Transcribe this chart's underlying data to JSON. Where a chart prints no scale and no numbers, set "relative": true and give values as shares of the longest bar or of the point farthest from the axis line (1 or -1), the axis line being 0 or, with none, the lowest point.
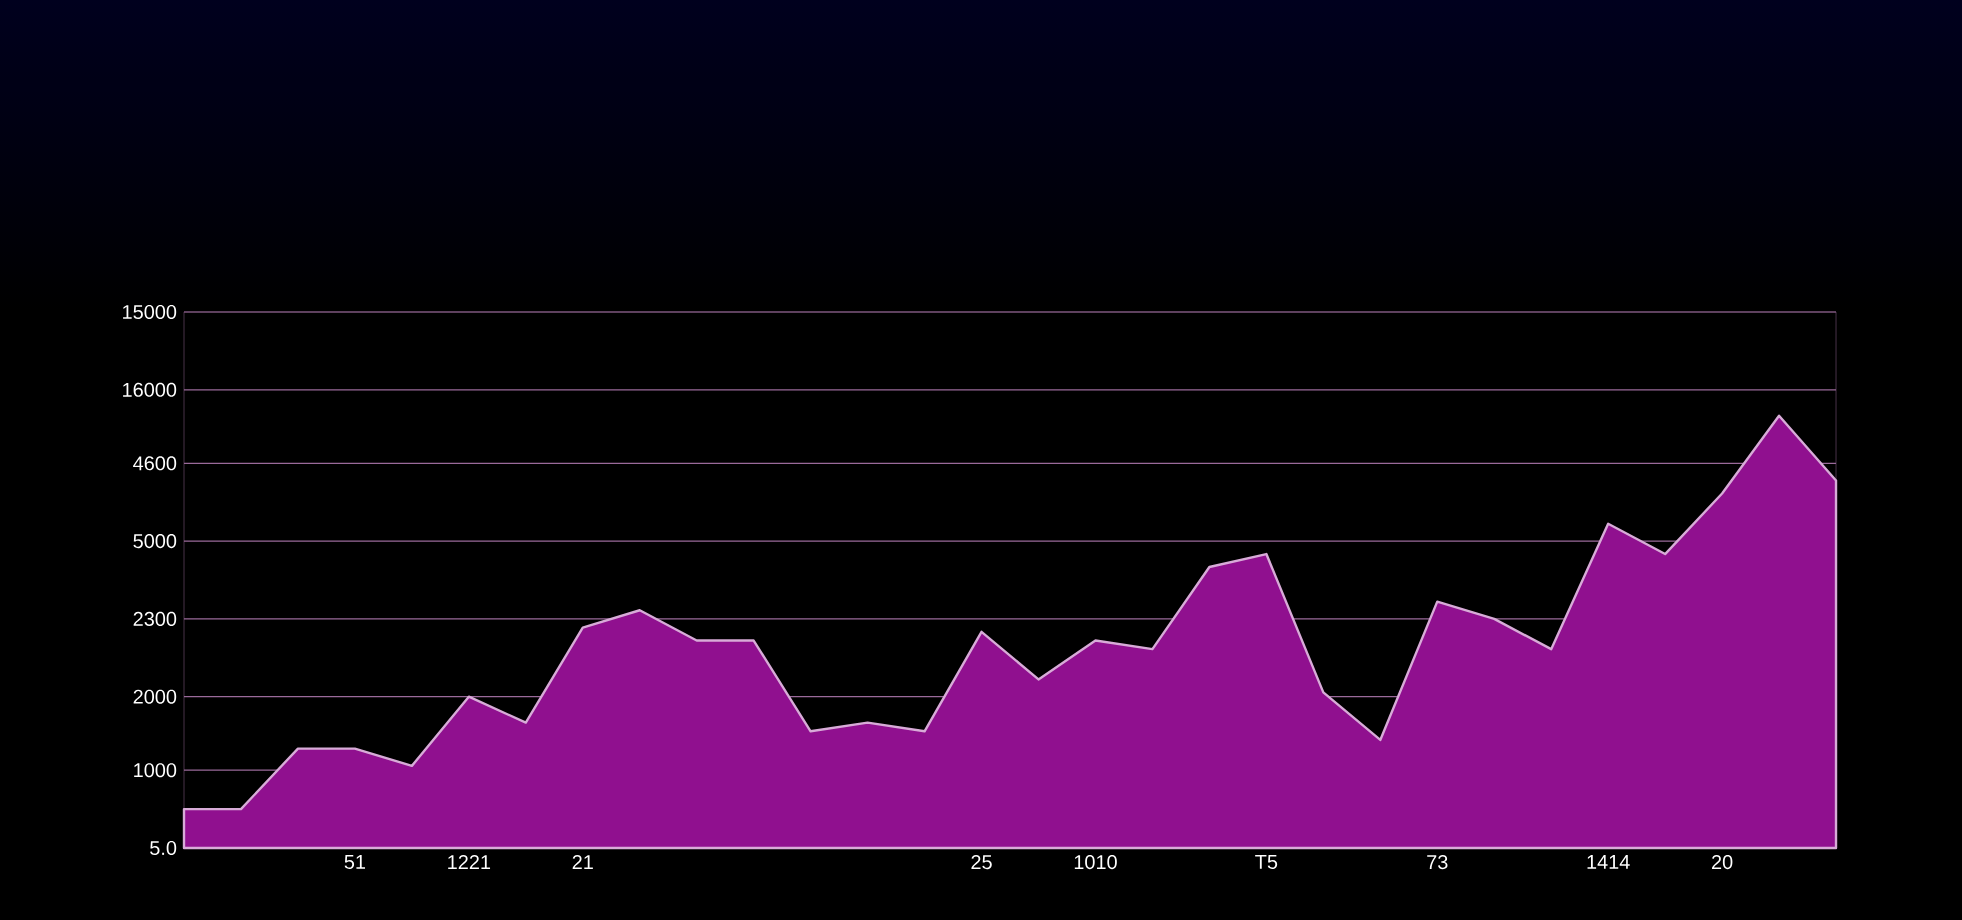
{
  "chart_data": {
    "type": "area",
    "categories": [
      null,
      null,
      null,
      "51",
      null,
      "1221",
      null,
      "21",
      null,
      null,
      null,
      null,
      null,
      null,
      "25",
      null,
      "1010",
      null,
      null,
      "T5",
      null,
      null,
      "73",
      null,
      null,
      "1414",
      null,
      "20",
      null,
      null
    ],
    "values": [
      0.09,
      0.09,
      0.23,
      0.23,
      0.19,
      0.35,
      0.29,
      0.51,
      0.55,
      0.48,
      0.48,
      0.27,
      0.29,
      0.27,
      0.5,
      0.39,
      0.48,
      0.46,
      0.65,
      0.68,
      0.36,
      0.25,
      0.57,
      0.53,
      0.46,
      0.75,
      0.68,
      0.82,
      1,
      0.85
    ],
    "relative": true,
    "color": "#90108f",
    "ref_lines": [
      {
        "axis": "y",
        "value": 0.18,
        "color": "#9a6a9a"
      },
      {
        "axis": "y",
        "value": 0.35,
        "color": "#9a6a9a"
      },
      {
        "axis": "y",
        "value": 0.53,
        "color": "#9a6a9a"
      },
      {
        "axis": "y",
        "value": 0.71,
        "color": "#9a6a9a"
      },
      {
        "axis": "y",
        "value": 0.89,
        "color": "#9a6a9a"
      },
      {
        "axis": "y",
        "value": 1.06,
        "color": "#9a6a9a"
      },
      {
        "axis": "y",
        "value": 1.24,
        "color": "#9a6a9a"
      }
    ],
    "annotations": [
      "5.0",
      "1000",
      "2000",
      "2300",
      "5000",
      "4600",
      "16000",
      "15000"
    ],
    "marker": "none",
    "line_style": "solid"
  }
}
